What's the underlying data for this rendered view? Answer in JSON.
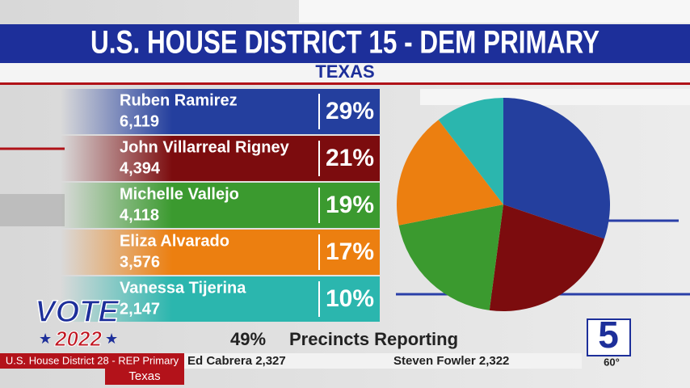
{
  "chart_data": {
    "type": "pie",
    "title": "U.S. HOUSE DISTRICT 15 - DEM PRIMARY",
    "subtitle": "TEXAS",
    "categories": [
      "Ruben Ramirez",
      "John Villarreal Rigney",
      "Michelle Vallejo",
      "Eliza Alvarado",
      "Vanessa Tijerina"
    ],
    "values": [
      29,
      21,
      19,
      17,
      10
    ],
    "value_labels": [
      "29%",
      "21%",
      "19%",
      "17%",
      "10%"
    ],
    "votes": [
      6119,
      4394,
      4118,
      3576,
      2147
    ],
    "vote_labels": [
      "6,119",
      "4,394",
      "4,118",
      "3,576",
      "2,147"
    ],
    "colors": [
      "#243f9e",
      "#7c0c0e",
      "#3b9a2f",
      "#ec7f10",
      "#2bb6ae"
    ]
  },
  "reporting": {
    "percent": "49%",
    "label": "Precincts Reporting"
  },
  "branding": {
    "vote": "VOTE",
    "year": "2022",
    "channel": "5",
    "temperature": "60°"
  },
  "ticker": {
    "race": "U.S. House District 28 - REP Primary",
    "state": "Texas",
    "entries": [
      "Ed Cabrera 2,327",
      "Steven Fowler 2,322"
    ]
  }
}
